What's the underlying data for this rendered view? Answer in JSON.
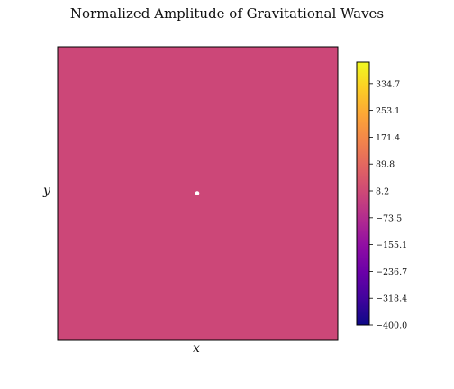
{
  "chart_data": {
    "type": "heatmap",
    "title": "Normalized Amplitude of Gravitational Waves",
    "xlabel": "x",
    "ylabel": "y",
    "field_value": 8.2,
    "field_color": "#cc4778",
    "point_value": 400.0,
    "point_color": "#ffffff",
    "colorbar": {
      "colormap": "plasma",
      "vmin": -400.0,
      "vmax": 400.0,
      "ticks": [
        {
          "value": 334.7,
          "label": "334.7"
        },
        {
          "value": 253.1,
          "label": "253.1"
        },
        {
          "value": 171.4,
          "label": "171.4"
        },
        {
          "value": 89.8,
          "label": "89.8"
        },
        {
          "value": 8.2,
          "label": "8.2"
        },
        {
          "value": -73.5,
          "label": "−73.5"
        },
        {
          "value": -155.1,
          "label": "−155.1"
        },
        {
          "value": -236.7,
          "label": "−236.7"
        },
        {
          "value": -318.4,
          "label": "−318.4"
        },
        {
          "value": -400.0,
          "label": "−400.0"
        }
      ]
    },
    "grid": false
  }
}
